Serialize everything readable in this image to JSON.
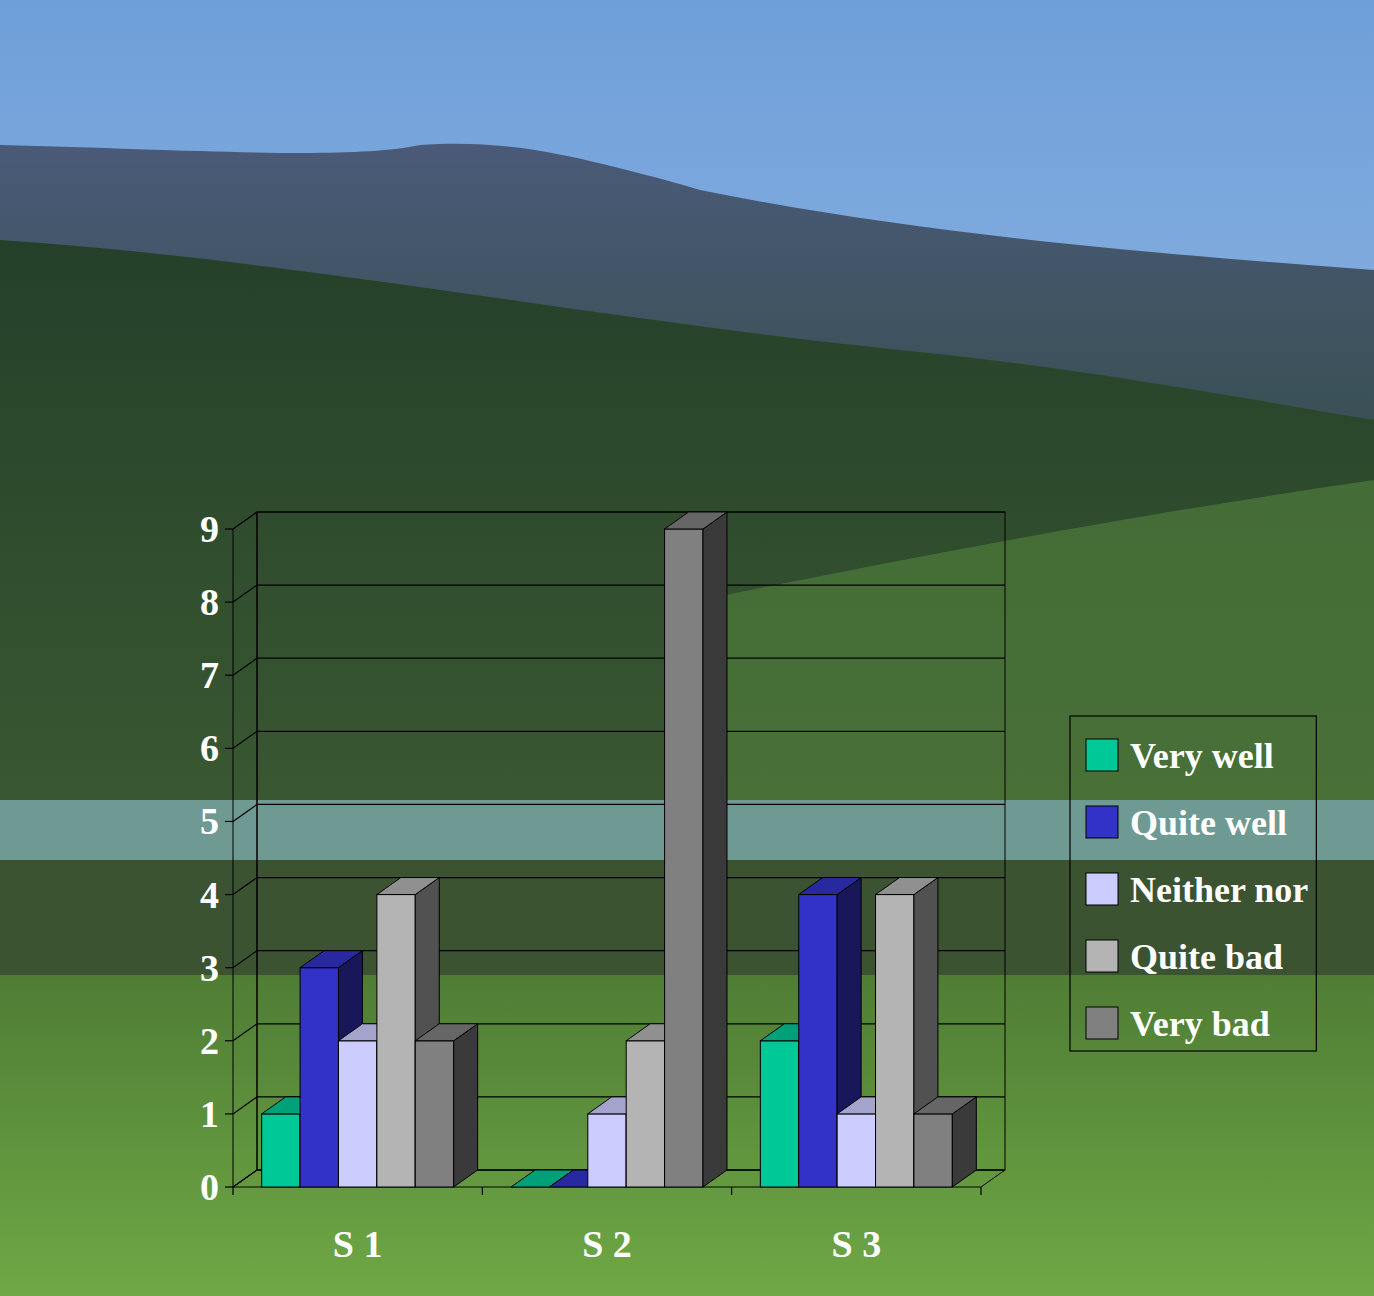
{
  "chart_data": {
    "type": "bar",
    "categories": [
      "S 1",
      "S 2",
      "S 3"
    ],
    "series": [
      {
        "name": "Very well",
        "color": "#00c896",
        "values": [
          1,
          0,
          2
        ]
      },
      {
        "name": "Quite well",
        "color": "#3232c8",
        "values": [
          3,
          0,
          4
        ]
      },
      {
        "name": "Neither nor",
        "color": "#ccccff",
        "values": [
          2,
          1,
          1
        ]
      },
      {
        "name": "Quite bad",
        "color": "#b4b4b4",
        "values": [
          4,
          2,
          4
        ]
      },
      {
        "name": "Very bad",
        "color": "#808080",
        "values": [
          2,
          9,
          1
        ]
      }
    ],
    "ylim": [
      0,
      9
    ],
    "yticks": [
      0,
      1,
      2,
      3,
      4,
      5,
      6,
      7,
      8,
      9
    ],
    "grid": true,
    "legend": "right"
  }
}
